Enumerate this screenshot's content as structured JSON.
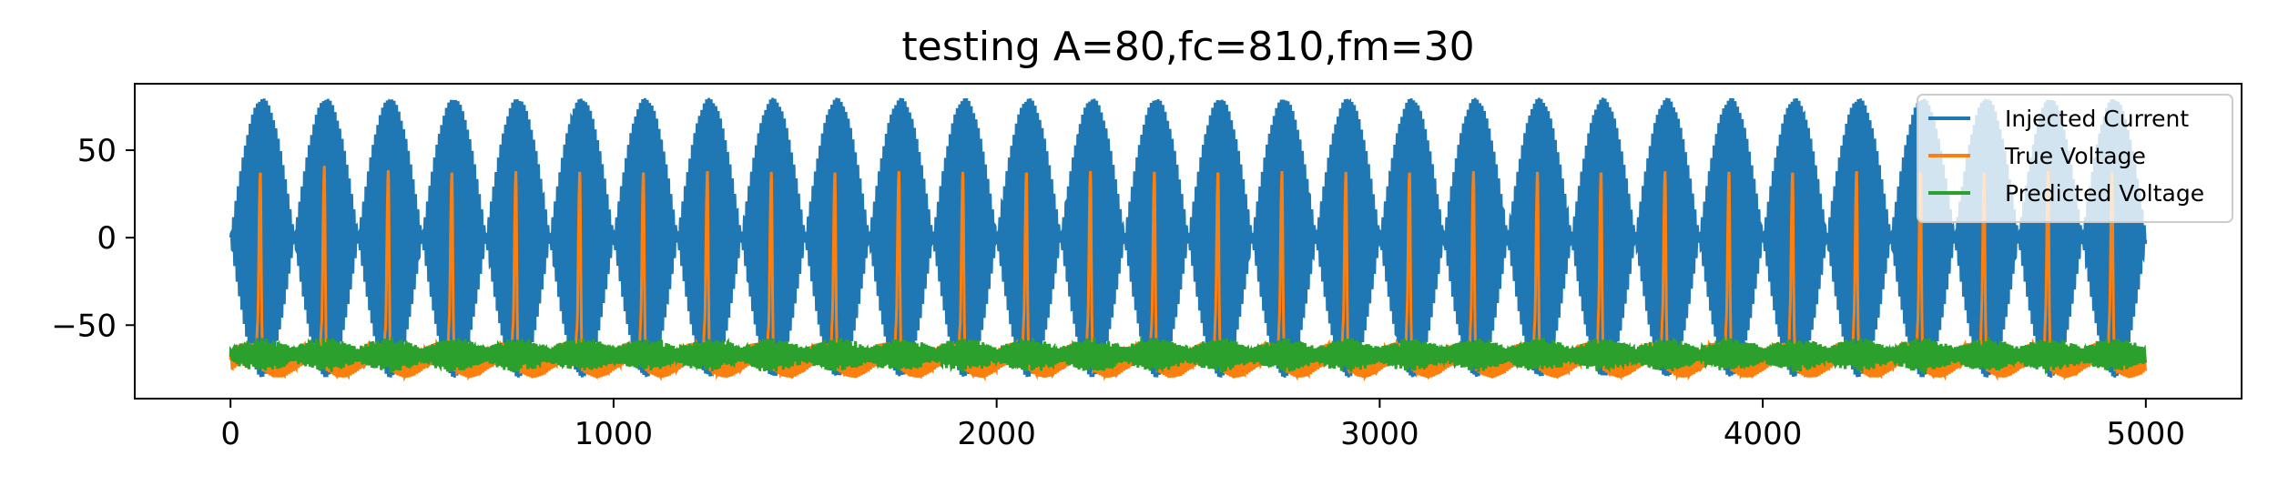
{
  "chart_data": {
    "type": "line",
    "title": "testing A=80,fc=810,fm=30",
    "xlabel": "",
    "ylabel": "",
    "xlim": [
      -250,
      5250
    ],
    "ylim": [
      -92,
      88
    ],
    "xticks": [
      0,
      1000,
      2000,
      3000,
      4000,
      5000
    ],
    "xtick_labels": [
      "0",
      "1000",
      "2000",
      "3000",
      "4000",
      "5000"
    ],
    "yticks": [
      -50,
      0,
      50
    ],
    "ytick_labels": [
      "−50",
      "0",
      "50"
    ],
    "grid": false,
    "legend_position": "top-right",
    "x_range": [
      0,
      5000
    ],
    "series": [
      {
        "name": "Injected Current",
        "color": "#1f77b4",
        "signal": "A*sin(2*pi*fc*t)*sin(2*pi*fm*t)",
        "A": 80,
        "fc": 810,
        "fm": 30,
        "peak_values": [
          80,
          -80
        ]
      },
      {
        "name": "True Voltage",
        "color": "#ff7f0e",
        "signal": "resting voltage with periodic spikes",
        "resting_value": -70,
        "spike_period": 166.7,
        "spike_x": [
          78,
          245,
          412,
          578,
          745,
          912,
          1078,
          1245,
          1412,
          1578,
          1745,
          1912,
          2078,
          2245,
          2412,
          2578,
          2745,
          2912,
          3078,
          3245,
          3412,
          3578,
          3745,
          3912,
          4078,
          4245,
          4412,
          4578,
          4745,
          4912
        ],
        "spike_peaks": [
          38,
          41,
          39,
          38,
          38,
          38,
          38,
          38,
          38,
          38,
          38,
          38,
          38,
          38,
          38,
          38,
          38,
          38,
          38,
          38,
          38,
          38,
          38,
          38,
          38,
          38,
          38,
          38,
          38,
          38
        ]
      },
      {
        "name": "Predicted Voltage",
        "color": "#2ca02c",
        "signal": "noisy oscillation near resting voltage",
        "center_value": -67,
        "amplitude_range": [
          -78,
          -58
        ]
      }
    ]
  }
}
